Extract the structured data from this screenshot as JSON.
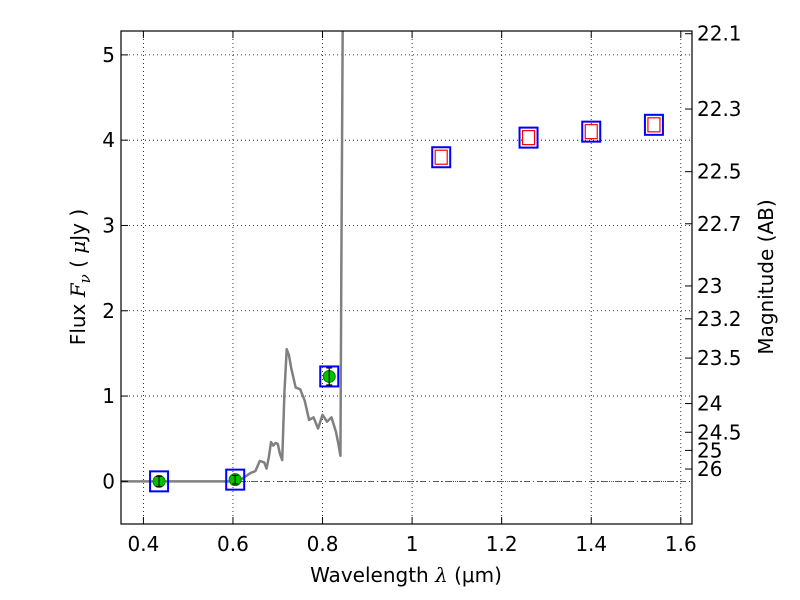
{
  "chart_data": {
    "type": "scatter",
    "xlabel": "Wavelength  λ (μm)",
    "xlabel_parts": {
      "prefix": "Wavelength  ",
      "symbol": "λ",
      "suffix": " (μm)"
    },
    "ylabel": "Flux  Fν  ( μJy )",
    "ylabel_parts": {
      "prefix": "Flux  ",
      "symbol": "F",
      "subscript": "ν",
      "middle": "  ( ",
      "unit_symbol": "μ",
      "suffix": "Jy )"
    },
    "y2label": "Magnitude (AB)",
    "xlim": [
      0.35,
      1.625
    ],
    "ylim": [
      -0.5,
      5.28
    ],
    "grid": true,
    "x_ticks": [
      0.4,
      0.6,
      0.8,
      1.0,
      1.2,
      1.4,
      1.6
    ],
    "x_tick_labels": [
      "0.4",
      "0.6",
      "0.8",
      "1",
      "1.2",
      "1.4",
      "1.6"
    ],
    "y_ticks": [
      0,
      1,
      2,
      3,
      4,
      5
    ],
    "y_tick_labels": [
      "0",
      "1",
      "2",
      "3",
      "4",
      "5"
    ],
    "mag_ticks": [
      {
        "label": "22.1",
        "mag": 22.1
      },
      {
        "label": "22.3",
        "mag": 22.3
      },
      {
        "label": "22.5",
        "mag": 22.5
      },
      {
        "label": "22.7",
        "mag": 22.7
      },
      {
        "label": "23",
        "mag": 23.0
      },
      {
        "label": "23.2",
        "mag": 23.2
      },
      {
        "label": "23.5",
        "mag": 23.5
      },
      {
        "label": "24",
        "mag": 24.0
      },
      {
        "label": "24.5",
        "mag": 24.5
      },
      {
        "label": "25",
        "mag": 25.0
      },
      {
        "label": "26",
        "mag": 26.0
      }
    ],
    "zero_line": 0,
    "series": [
      {
        "name": "model_sed",
        "kind": "line",
        "color": "#808080",
        "x": [
          0.35,
          0.4,
          0.45,
          0.5,
          0.55,
          0.6,
          0.62,
          0.64,
          0.65,
          0.66,
          0.67,
          0.675,
          0.68,
          0.685,
          0.69,
          0.695,
          0.7,
          0.705,
          0.71,
          0.715,
          0.72,
          0.725,
          0.73,
          0.74,
          0.75,
          0.76,
          0.77,
          0.78,
          0.79,
          0.8,
          0.81,
          0.82,
          0.83,
          0.835,
          0.84,
          0.842,
          0.845
        ],
        "y": [
          0.0,
          0.0,
          0.0,
          0.0,
          0.0,
          0.0,
          0.03,
          0.1,
          0.12,
          0.24,
          0.22,
          0.15,
          0.28,
          0.46,
          0.42,
          0.45,
          0.44,
          0.32,
          0.25,
          1.05,
          1.55,
          1.48,
          1.33,
          1.1,
          1.08,
          0.95,
          0.72,
          0.75,
          0.62,
          0.78,
          0.7,
          0.75,
          0.58,
          0.45,
          0.3,
          2.5,
          5.28
        ]
      },
      {
        "name": "model_flux_boxes",
        "kind": "open_square",
        "color": "#0000ff",
        "x": [
          0.435,
          0.605,
          0.815,
          1.065,
          1.26,
          1.4,
          1.54
        ],
        "y": [
          0.0,
          0.02,
          1.23,
          3.8,
          4.03,
          4.1,
          4.18
        ]
      },
      {
        "name": "detections",
        "kind": "filled_circle",
        "color": "#00c000",
        "x": [
          0.435,
          0.605,
          0.815
        ],
        "y": [
          0.0,
          0.02,
          1.23
        ],
        "yerr": [
          0.06,
          0.05,
          0.1
        ]
      },
      {
        "name": "upper_limits",
        "kind": "open_square",
        "color": "#ff0000",
        "x": [
          1.065,
          1.26,
          1.4,
          1.54
        ],
        "y": [
          3.8,
          4.03,
          4.1,
          4.18
        ]
      }
    ]
  }
}
